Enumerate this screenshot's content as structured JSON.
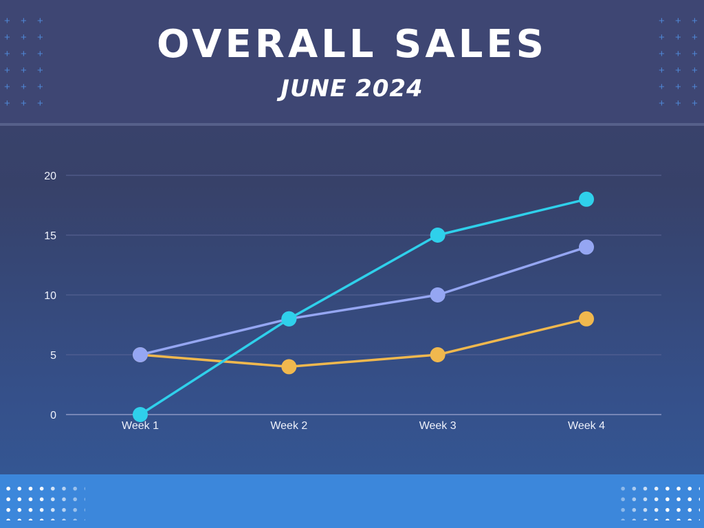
{
  "header": {
    "title": "OVERALL SALES",
    "subtitle": "JUNE 2024"
  },
  "decor": {
    "header_pattern": "plus-pattern",
    "footer_pattern": "dot-pattern",
    "header_color": "#3e4673",
    "footer_color": "#3c87db"
  },
  "chart_data": {
    "type": "line",
    "title": "OVERALL SALES",
    "subtitle": "JUNE 2024",
    "xlabel": "",
    "ylabel": "",
    "categories": [
      "Week 1",
      "Week 2",
      "Week 3",
      "Week 4"
    ],
    "ylim": [
      0,
      20
    ],
    "yticks": [
      0,
      5,
      10,
      15,
      20
    ],
    "grid": true,
    "legend": "none",
    "series": [
      {
        "color": "#f0b84e",
        "values": [
          5,
          4,
          5,
          8
        ]
      },
      {
        "color": "#95a6f2",
        "values": [
          5,
          8,
          10,
          14
        ]
      },
      {
        "color": "#2fd0eb",
        "values": [
          0,
          8,
          15,
          18
        ]
      }
    ]
  }
}
